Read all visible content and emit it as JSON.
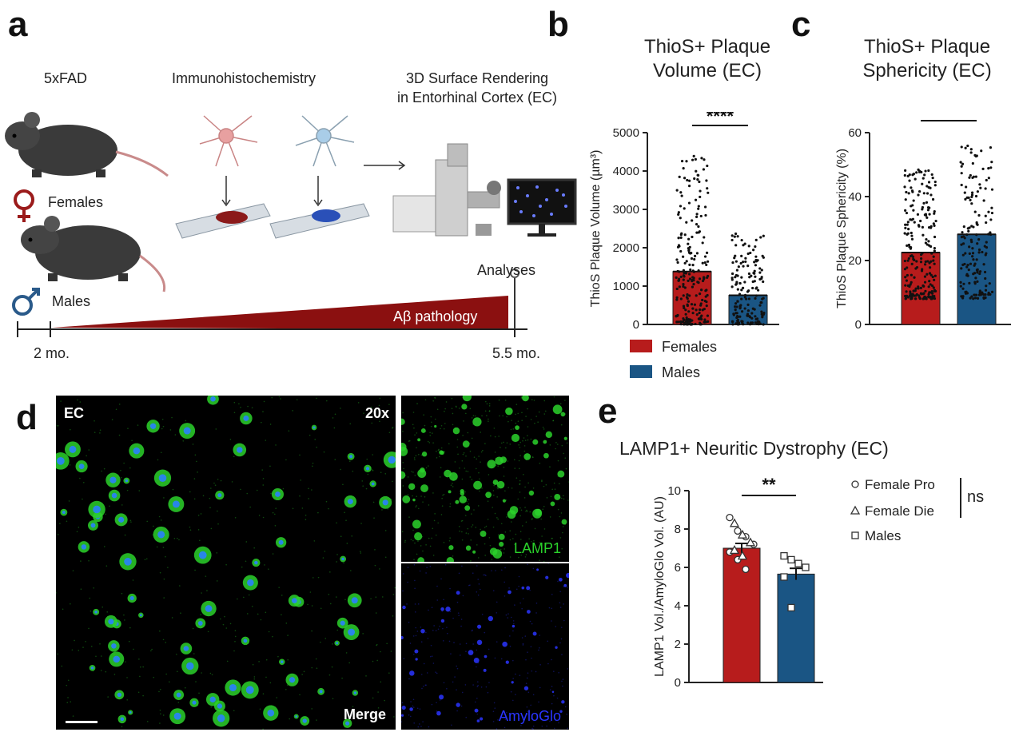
{
  "panel_labels": {
    "a": "a",
    "b": "b",
    "c": "c",
    "d": "d",
    "e": "e"
  },
  "panel_a": {
    "strain": "5xFAD",
    "method": "Immunohistochemistry",
    "rendering_line1": "3D Surface Rendering",
    "rendering_line2": "in Entorhinal Cortex (EC)",
    "females": "Females",
    "males": "Males",
    "analyses": "Analyses",
    "pathology": "Aβ pathology",
    "t_start": "2 mo.",
    "t_end": "5.5 mo."
  },
  "legend_bc": {
    "females": "Females",
    "males": "Males"
  },
  "panel_d": {
    "region": "EC",
    "magnification": "20x",
    "merge": "Merge",
    "lamp1": "LAMP1",
    "amyloglo": "AmyloGlo"
  },
  "colors": {
    "female": "#b71c1c",
    "male": "#1a5584",
    "lamp1": "#2bd12b",
    "amyloglo": "#2a35ff",
    "pathology": "#8b1010"
  },
  "chart_data": [
    {
      "id": "b",
      "type": "bar",
      "title": "ThioS+ Plaque Volume (EC)",
      "title_line1": "ThioS+ Plaque",
      "title_line2": "Volume (EC)",
      "ylabel": "ThioS Plaque Volume (µm³)",
      "ylim": [
        0,
        5000
      ],
      "yticks": [
        0,
        1000,
        2000,
        3000,
        4000,
        5000
      ],
      "categories": [
        "Females",
        "Males"
      ],
      "values": [
        1380,
        760
      ],
      "point_ranges": [
        [
          0,
          4600
        ],
        [
          0,
          2400
        ]
      ],
      "significance": "****"
    },
    {
      "id": "c",
      "type": "bar",
      "title": "ThioS+ Plaque Sphericity (EC)",
      "title_line1": "ThioS+ Plaque",
      "title_line2": "Sphericity (EC)",
      "ylabel": "ThioS Plaque Sphericity (%)",
      "ylim": [
        0,
        60
      ],
      "yticks": [
        0,
        20,
        40,
        60
      ],
      "categories": [
        "Females",
        "Males"
      ],
      "values": [
        22.5,
        28.2
      ],
      "point_ranges": [
        [
          8,
          49
        ],
        [
          8,
          56
        ]
      ],
      "significance": "****"
    },
    {
      "id": "e",
      "type": "bar",
      "title": "LAMP1+ Neuritic Dystrophy (EC)",
      "ylabel": "LAMP1 Vol./AmyloGlo Vol. (AU)",
      "ylim": [
        0,
        10
      ],
      "yticks": [
        0,
        2,
        4,
        6,
        8,
        10
      ],
      "categories": [
        "Females",
        "Males"
      ],
      "values": [
        7.0,
        5.65
      ],
      "errors": [
        0.25,
        0.3
      ],
      "significance": "**",
      "legend": [
        "Female Pro",
        "Female Die",
        "Males"
      ],
      "legend_ns": "ns",
      "female_pro": [
        8.6,
        7.9,
        7.6,
        7.2,
        6.8,
        6.4,
        5.9
      ],
      "female_die": [
        8.3,
        7.7,
        7.3,
        6.9,
        6.6
      ],
      "males": [
        6.6,
        6.4,
        6.2,
        6.0,
        5.5,
        3.9
      ]
    }
  ]
}
